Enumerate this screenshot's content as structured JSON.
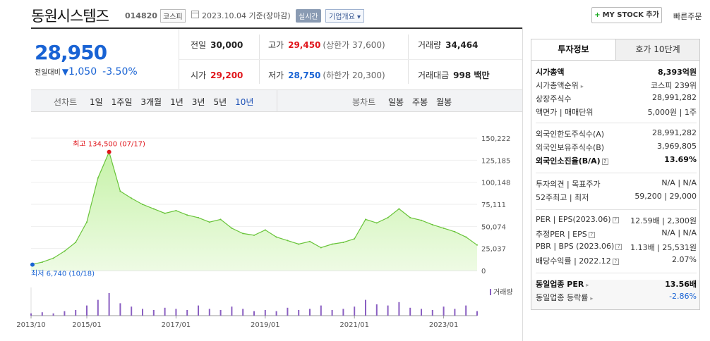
{
  "header": {
    "name": "동원시스템즈",
    "code": "014820",
    "market": "코스피",
    "date": "2023.10.04 기준(장마감)",
    "realtime": "실시간",
    "company_info": "기업개요 ▾",
    "mystock": "MY STOCK 추가",
    "quick_order": "빠른주문"
  },
  "price": {
    "current": "28,950",
    "diff_label": "전일대비",
    "diff_arrow": "▼",
    "diff": "1,050",
    "pct": "-3.50%"
  },
  "stats": {
    "prev_k": "전일",
    "prev_v": "30,000",
    "high_k": "고가",
    "high_v": "29,450",
    "upper": "(상한가 37,600)",
    "vol_k": "거래량",
    "vol_v": "34,464",
    "open_k": "시가",
    "open_v": "29,200",
    "low_k": "저가",
    "low_v": "28,750",
    "lower": "(하한가 20,300)",
    "amt_k": "거래대금",
    "amt_v": "998 백만"
  },
  "period": {
    "line_label": "선차트",
    "line_opts": [
      "1일",
      "1주일",
      "3개월",
      "1년",
      "3년",
      "5년",
      "10년"
    ],
    "candle_label": "봉차트",
    "candle_opts": [
      "일봉",
      "주봉",
      "월봉"
    ]
  },
  "chart_data": {
    "type": "area",
    "y_ticks": [
      "150,222",
      "125,185",
      "100,148",
      "75,111",
      "50,074",
      "25,037",
      "0"
    ],
    "ylim": [
      0,
      150222
    ],
    "x_ticks": [
      "2013/10",
      "2015/01",
      "2017/01",
      "2019/01",
      "2021/01",
      "2023/01"
    ],
    "max_label": "최고 134,500 (07/17)",
    "min_label": "최저 6,740 (10/18)",
    "volume_label": "거래량",
    "x": [
      "2013/10",
      "2014/01",
      "2014/04",
      "2014/07",
      "2014/10",
      "2015/01",
      "2015/04",
      "2015/07",
      "2015/10",
      "2016/01",
      "2016/04",
      "2016/07",
      "2016/10",
      "2017/01",
      "2017/04",
      "2017/07",
      "2017/10",
      "2018/01",
      "2018/04",
      "2018/07",
      "2018/10",
      "2019/01",
      "2019/04",
      "2019/07",
      "2019/10",
      "2020/01",
      "2020/04",
      "2020/07",
      "2020/10",
      "2021/01",
      "2021/04",
      "2021/07",
      "2021/10",
      "2022/01",
      "2022/04",
      "2022/07",
      "2022/10",
      "2023/01",
      "2023/04",
      "2023/07",
      "2023/10"
    ],
    "values": [
      6740,
      9500,
      14000,
      22000,
      32000,
      55000,
      105000,
      134500,
      90000,
      82000,
      75000,
      70000,
      65000,
      68000,
      63000,
      60000,
      55000,
      58000,
      48000,
      42000,
      40000,
      46000,
      38000,
      34000,
      30000,
      33000,
      26000,
      30000,
      32000,
      36000,
      58000,
      54000,
      60000,
      70000,
      60000,
      57000,
      52000,
      48000,
      44000,
      38000,
      28950
    ],
    "volume": [
      2,
      3,
      2,
      4,
      5,
      9,
      14,
      20,
      11,
      8,
      6,
      5,
      7,
      6,
      5,
      9,
      6,
      5,
      8,
      6,
      4,
      5,
      4,
      7,
      5,
      6,
      9,
      5,
      6,
      8,
      14,
      10,
      9,
      12,
      7,
      6,
      5,
      8,
      6,
      9,
      4
    ]
  },
  "tabs": {
    "invest": "투자정보",
    "quote": "호가 10단계"
  },
  "info": [
    {
      "k": "시가총액",
      "v": "8,393억원",
      "bold": true
    },
    {
      "k": "시가총액순위",
      "v": "코스피 239위",
      "caret": true
    },
    {
      "k": "상장주식수",
      "v": "28,991,282"
    },
    {
      "k": "액면가 | 매매단위",
      "v": "5,000원 | 1주"
    },
    {
      "k": "외국인한도주식수(A)",
      "v": "28,991,282"
    },
    {
      "k": "외국인보유주식수(B)",
      "v": "3,969,805"
    },
    {
      "k": "외국인소진율(B/A)",
      "v": "13.69%",
      "bold": true,
      "tip": true
    },
    {
      "k": "투자의견 | 목표주가",
      "v": "N/A | N/A"
    },
    {
      "k": "52주최고 | 최저",
      "v": "59,200 | 29,000"
    },
    {
      "k": "PER | EPS(2023.06)",
      "v": "12.59배 | 2,300원",
      "tip": true
    },
    {
      "k": "추정PER | EPS",
      "v": "N/A | N/A",
      "tip": true
    },
    {
      "k": "PBR | BPS (2023.06)",
      "v": "1.13배 | 25,531원",
      "tip": true
    },
    {
      "k": "배당수익률 | 2022.12",
      "v": "2.07%",
      "tip": true
    },
    {
      "k": "동일업종 PER",
      "v": "13.56배",
      "bold": true,
      "caret": true
    },
    {
      "k": "동일업종 등락률",
      "v": "-2.86%",
      "blueval": true,
      "caret": true
    }
  ]
}
